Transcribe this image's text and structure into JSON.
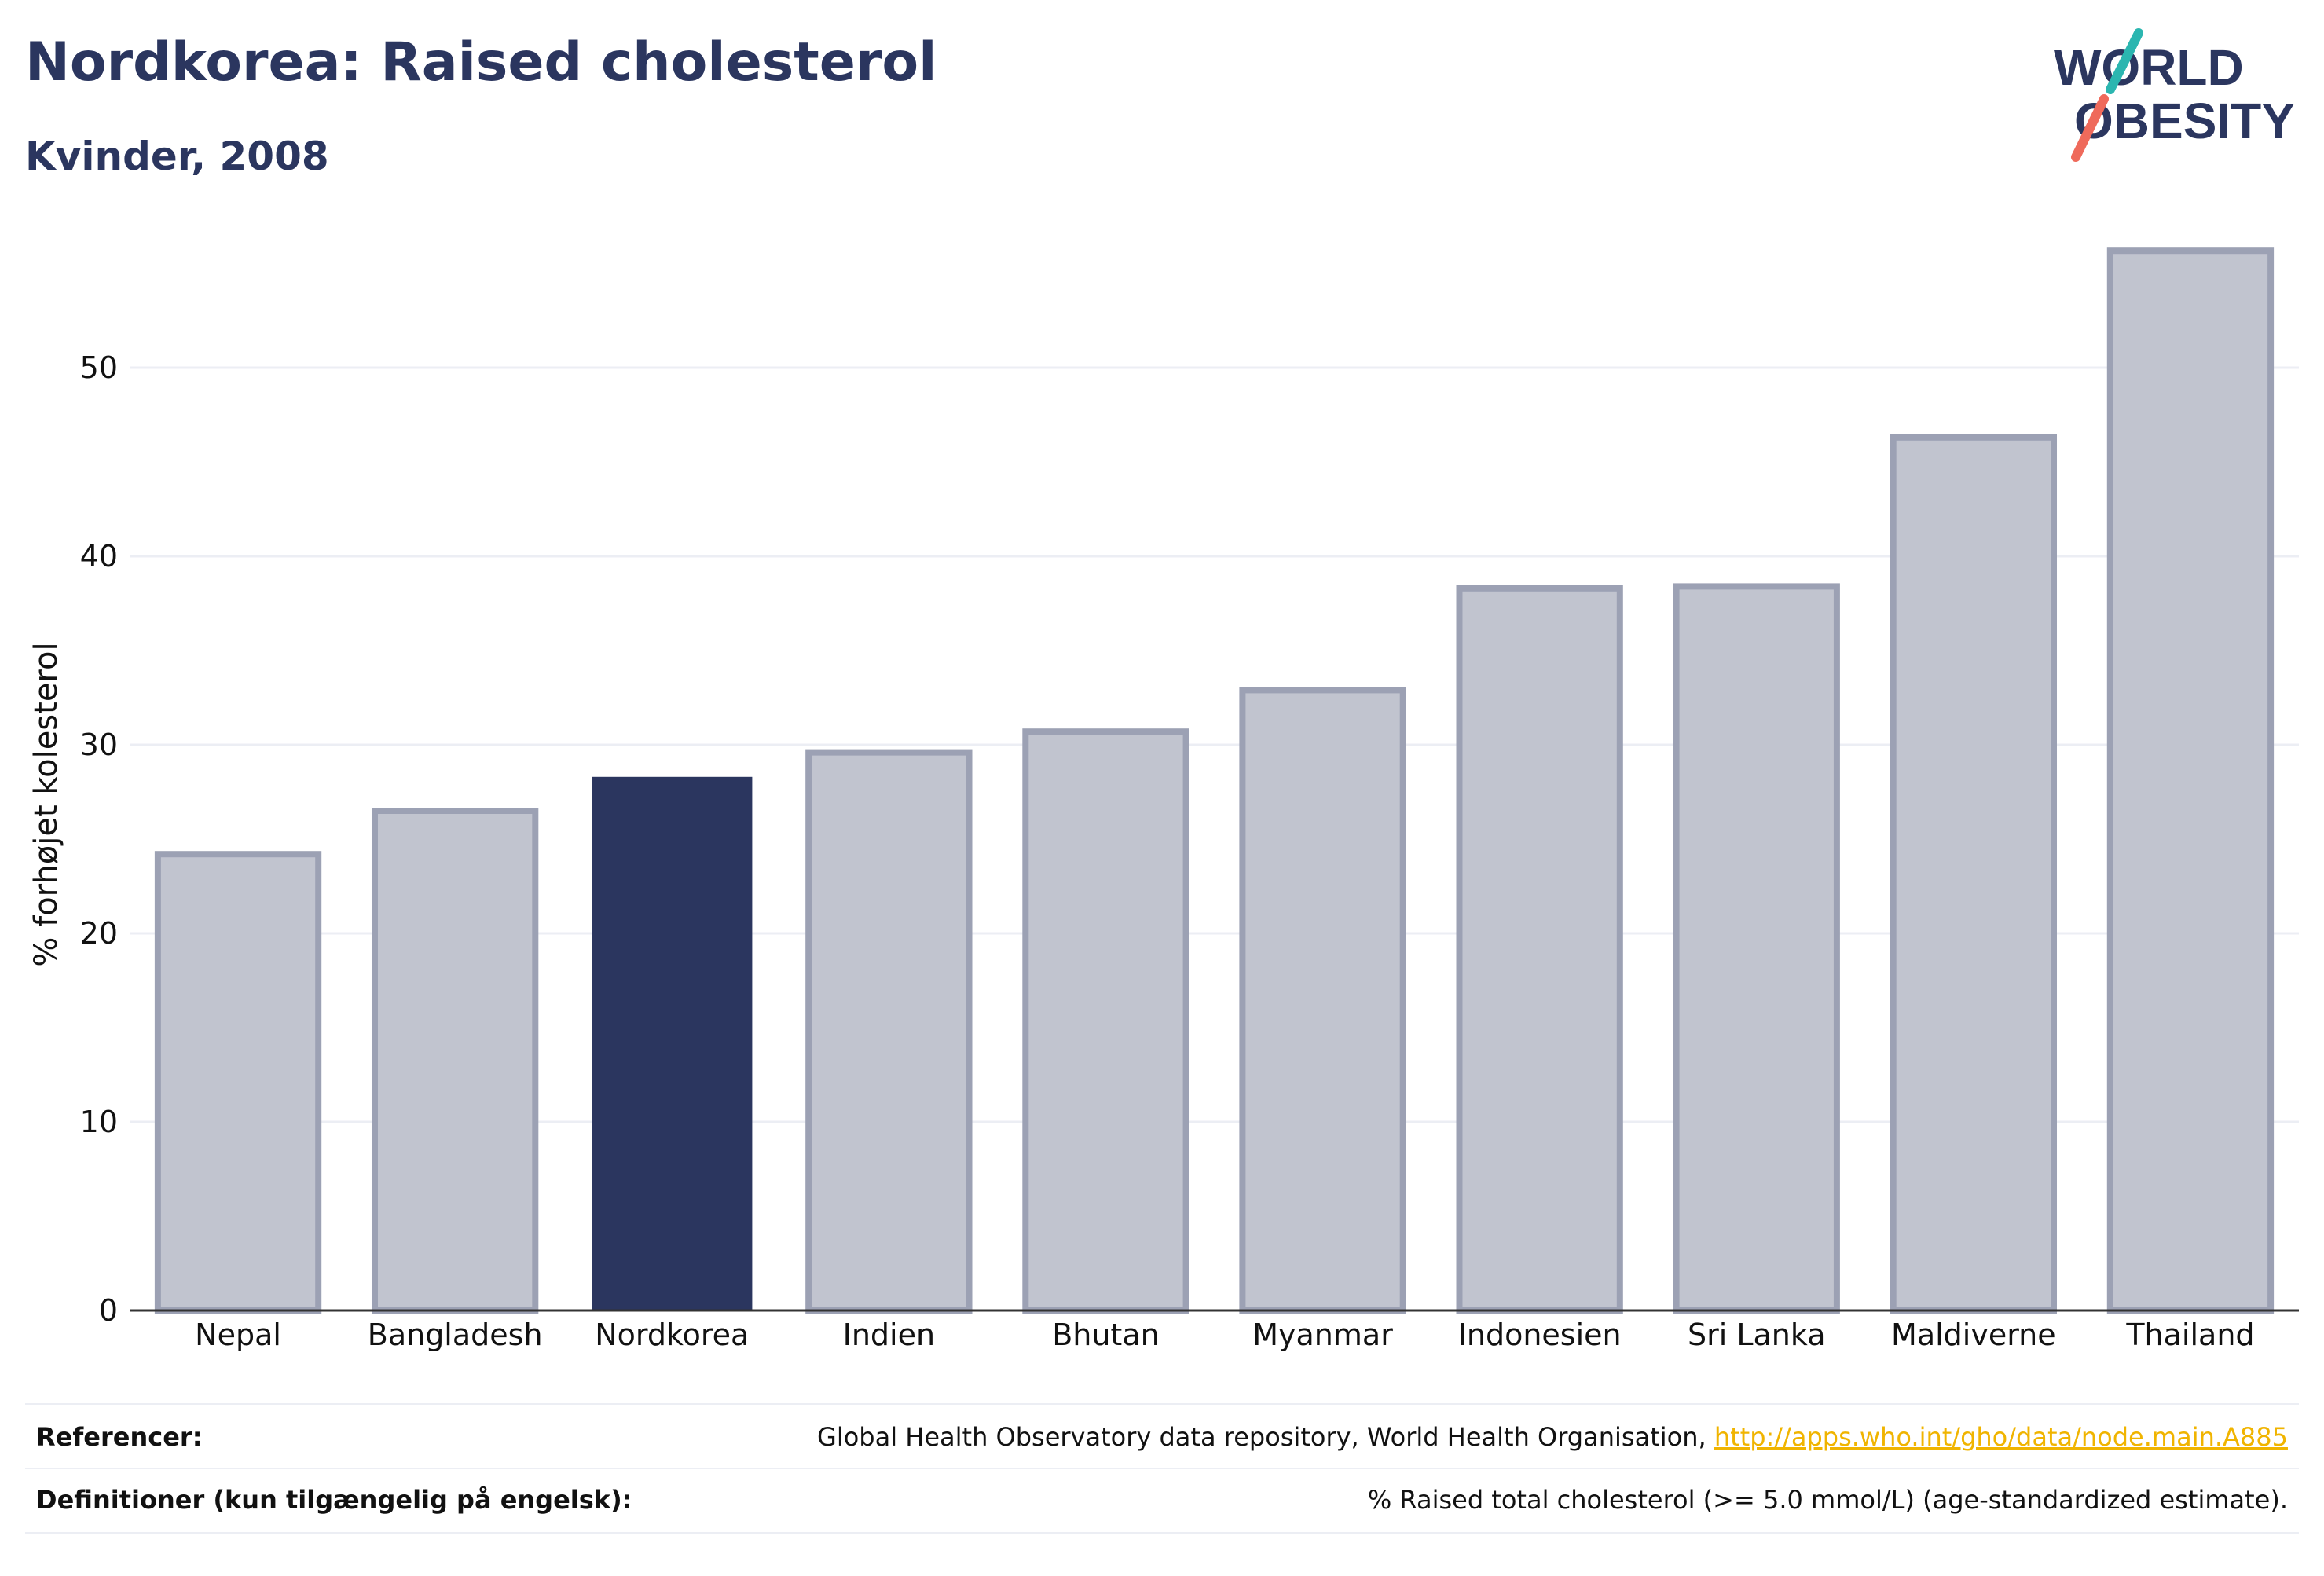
{
  "header": {
    "title": "Nordkorea: Raised cholesterol",
    "subtitle": "Kvinder, 2008"
  },
  "logo": {
    "line1": "WORLD",
    "line2": "OBESITY"
  },
  "colors": {
    "highlight": "#2b365f",
    "bar": "#c1c4cf",
    "bar_border": "#9ca1b4",
    "grid": "#eceef4",
    "axis": "#333333",
    "logo_teal": "#2bb6b0",
    "logo_coral": "#ef6a5b",
    "link": "#f0b400"
  },
  "chart_data": {
    "type": "bar",
    "categories": [
      "Nepal",
      "Bangladesh",
      "Nordkorea",
      "Indien",
      "Bhutan",
      "Myanmar",
      "Indonesien",
      "Sri Lanka",
      "Maldiverne",
      "Thailand"
    ],
    "values": [
      24.2,
      26.5,
      28.3,
      29.6,
      30.7,
      32.9,
      38.3,
      38.4,
      46.3,
      56.2
    ],
    "highlight": "Nordkorea",
    "ylabel": "% forhøjet kolesterol",
    "xlabel": "",
    "ylim": [
      0,
      57
    ],
    "yticks": [
      0,
      10,
      20,
      30,
      40,
      50
    ],
    "grid": true
  },
  "footer": {
    "references_label": "Referencer:",
    "references_text": "Global Health Observatory data repository, World Health Organisation, ",
    "references_link": "http://apps.who.int/gho/data/node.main.A885",
    "definitions_label": "Definitioner (kun tilgængelig på engelsk):",
    "definitions_text": "% Raised total cholesterol (>= 5.0 mmol/L) (age-standardized estimate)."
  }
}
